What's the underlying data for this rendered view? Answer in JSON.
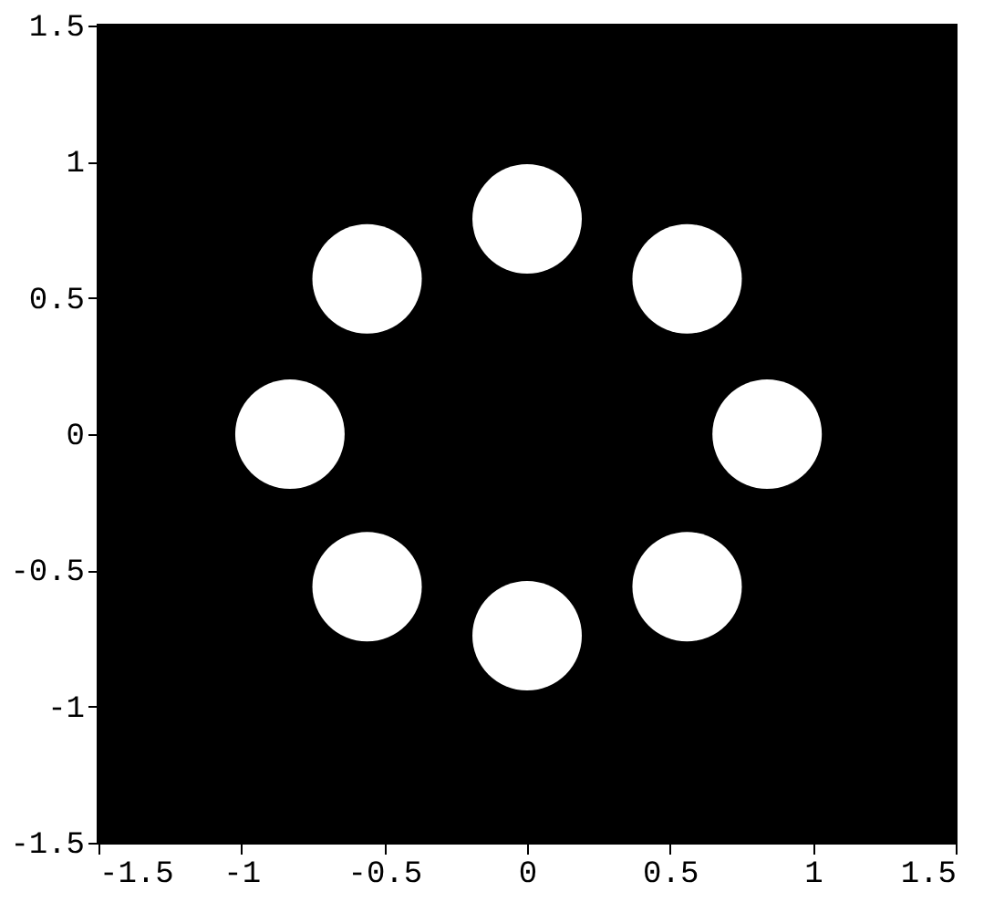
{
  "chart_data": {
    "type": "scatter",
    "x": [
      0,
      0.56,
      0.84,
      0.56,
      0,
      -0.56,
      -0.83,
      -0.56
    ],
    "series": [
      {
        "color": "#ffffff",
        "values": [
          0.79,
          0.57,
          0,
          -0.56,
          -0.74,
          -0.56,
          0,
          0.57
        ]
      }
    ],
    "marker": "circle",
    "grid": false,
    "legend": false,
    "xlim": [
      -1.5,
      1.5
    ],
    "xticks": [
      {
        "value": -1.5,
        "label": "-1.5"
      },
      {
        "value": -1,
        "label": "-1"
      },
      {
        "value": -0.5,
        "label": "-0.5"
      },
      0,
      {
        "value": 0.5,
        "label": "0.5"
      },
      1,
      {
        "value": 1.5,
        "label": "1.5"
      }
    ],
    "ylim": [
      -1.5,
      1.5
    ],
    "yticks": [
      {
        "value": -1.5,
        "label": "-1.5"
      },
      -1,
      {
        "value": -0.5,
        "label": "-0.5"
      },
      0,
      {
        "value": 0.5,
        "label": "0.5"
      },
      1,
      {
        "value": 1.5,
        "label": "1.5"
      }
    ]
  }
}
